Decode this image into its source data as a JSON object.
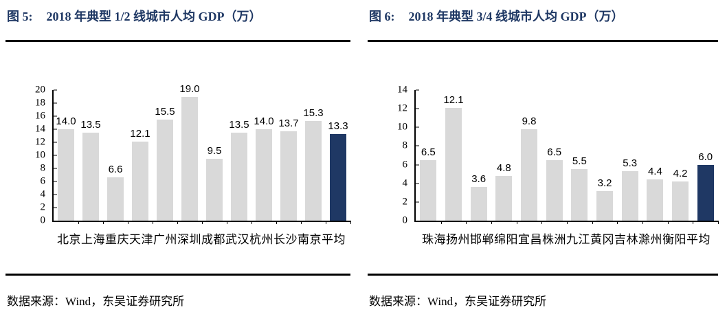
{
  "panels": [
    {
      "title_prefix": "图 5:",
      "title_text": "2018 年典型 1/2 线城市人均 GDP（万）",
      "source": "数据来源：Wind，东吴证券研究所"
    },
    {
      "title_prefix": "图 6:",
      "title_text": "2018 年典型 3/4 线城市人均 GDP（万）",
      "source": "数据来源：Wind，东吴证券研究所"
    }
  ],
  "chart_data": [
    {
      "type": "bar",
      "title": "图 5: 2018 年典型 1/2 线城市人均 GDP（万）",
      "categories": [
        "北京",
        "上海",
        "重庆",
        "天津",
        "广州",
        "深圳",
        "成都",
        "武汉",
        "杭州",
        "长沙",
        "南京",
        "平均"
      ],
      "values": [
        14.0,
        13.5,
        6.6,
        12.1,
        15.5,
        19.0,
        9.5,
        13.5,
        14.0,
        13.7,
        15.3,
        13.3
      ],
      "xlabel": "",
      "ylabel": "",
      "ylim": [
        0,
        20
      ],
      "yticks": [
        0,
        2,
        4,
        6,
        8,
        10,
        12,
        14,
        16,
        18,
        20
      ],
      "grid": false,
      "legend": "none",
      "data_labels": true,
      "bar_color": "#d9d9d9",
      "highlight_index": 11,
      "highlight_color": "#1f3864",
      "axis_color": "#000000"
    },
    {
      "type": "bar",
      "title": "图 6: 2018 年典型 3/4 线城市人均 GDP（万）",
      "categories": [
        "珠海",
        "扬州",
        "邯郸",
        "绵阳",
        "宜昌",
        "株洲",
        "九江",
        "黄冈",
        "吉林",
        "滁州",
        "衡阳",
        "平均"
      ],
      "values": [
        6.5,
        12.1,
        3.6,
        4.8,
        9.8,
        6.5,
        5.5,
        3.2,
        5.3,
        4.4,
        4.2,
        6.0
      ],
      "xlabel": "",
      "ylabel": "",
      "ylim": [
        0,
        14
      ],
      "yticks": [
        0,
        2,
        4,
        6,
        8,
        10,
        12,
        14
      ],
      "grid": false,
      "legend": "none",
      "data_labels": true,
      "bar_color": "#d9d9d9",
      "highlight_index": 11,
      "highlight_color": "#1f3864",
      "axis_color": "#000000"
    }
  ],
  "colors": {
    "title_navy": "#1f3864",
    "bar_gray": "#d9d9d9",
    "bar_highlight_navy": "#1f3864",
    "rule_black": "#000000"
  }
}
